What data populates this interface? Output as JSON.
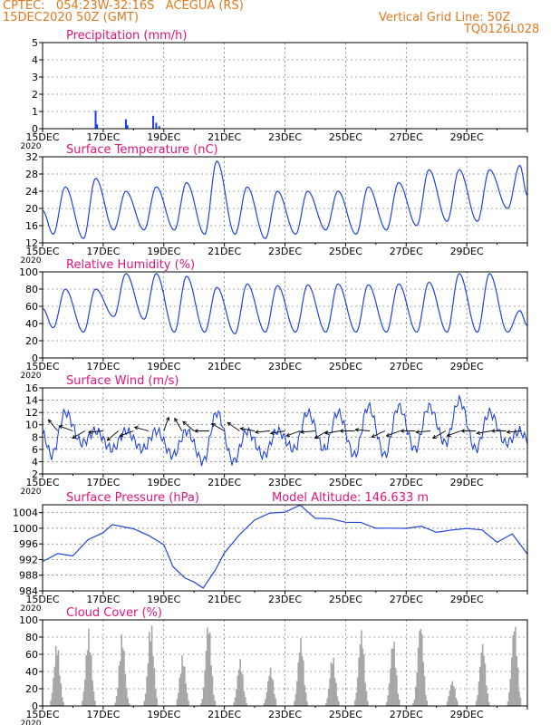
{
  "header": {
    "line1": "CPTEC:   054:23W-32:16S   ACEGUA (RS)",
    "line2": "15DEC2020 50Z (GMT)",
    "right1": "Vertical Grid Line: 50Z",
    "right2": "TQ0126L028",
    "color": "#e07a1f"
  },
  "chart_data": [
    {
      "id": "precip",
      "type": "bar",
      "title": "Precipitation (mm/h)",
      "ylim": [
        0,
        5
      ],
      "yticks": [
        0,
        1,
        2,
        3,
        4,
        5
      ],
      "color": "#1a3cff",
      "bars": [
        {
          "x": 1.75,
          "y": 1.05
        },
        {
          "x": 1.8,
          "y": 0.25
        },
        {
          "x": 2.75,
          "y": 0.55
        },
        {
          "x": 2.8,
          "y": 0.2
        },
        {
          "x": 3.65,
          "y": 0.75
        },
        {
          "x": 3.75,
          "y": 0.35
        },
        {
          "x": 3.85,
          "y": 0.15
        }
      ]
    },
    {
      "id": "temp",
      "type": "line",
      "title": "Surface Temperature (nC)",
      "ylim": [
        12,
        32
      ],
      "yticks": [
        12,
        16,
        20,
        24,
        28,
        32
      ],
      "color": "#2244dd",
      "daily_min": [
        14,
        13,
        15,
        15,
        15,
        14,
        14,
        13,
        14,
        15,
        14,
        15,
        16,
        17,
        17,
        20
      ],
      "daily_max": [
        25,
        27,
        24,
        25,
        26,
        31,
        25,
        24,
        24,
        24,
        25,
        26,
        29,
        29,
        29,
        30
      ]
    },
    {
      "id": "rh",
      "type": "line",
      "title": "Relative Humidity (%)",
      "ylim": [
        0,
        100
      ],
      "yticks": [
        0,
        20,
        40,
        60,
        80,
        100
      ],
      "color": "#2244dd",
      "daily_min": [
        35,
        30,
        48,
        45,
        30,
        30,
        28,
        30,
        30,
        30,
        30,
        30,
        30,
        30,
        30,
        30
      ],
      "daily_max": [
        80,
        80,
        98,
        98,
        95,
        82,
        86,
        84,
        85,
        86,
        85,
        86,
        88,
        98,
        98,
        55
      ]
    },
    {
      "id": "wind",
      "type": "line",
      "title": "Surface Wind (m/s)",
      "ylim": [
        2,
        16
      ],
      "yticks": [
        2,
        4,
        6,
        8,
        10,
        12,
        14,
        16
      ],
      "color": "#2244dd",
      "speed_min": [
        5,
        7,
        6,
        6,
        5,
        4,
        4,
        5,
        6,
        6,
        5,
        5,
        6,
        7,
        6,
        7
      ],
      "speed_max": [
        12,
        9,
        9,
        9,
        9,
        12,
        9,
        9,
        12,
        12,
        13,
        13,
        13,
        14,
        12,
        9
      ],
      "arrows": [
        {
          "x": 0.5,
          "dir": 320
        },
        {
          "x": 1.0,
          "dir": 290
        },
        {
          "x": 1.4,
          "dir": 240
        },
        {
          "x": 2.0,
          "dir": 265
        },
        {
          "x": 2.5,
          "dir": 230
        },
        {
          "x": 3.0,
          "dir": 250
        },
        {
          "x": 3.5,
          "dir": 285
        },
        {
          "x": 4.0,
          "dir": 20
        },
        {
          "x": 4.6,
          "dir": 330
        },
        {
          "x": 5.0,
          "dir": 310
        },
        {
          "x": 5.5,
          "dir": 270
        },
        {
          "x": 6.0,
          "dir": 300
        },
        {
          "x": 6.5,
          "dir": 305
        },
        {
          "x": 7.0,
          "dir": 280
        },
        {
          "x": 7.5,
          "dir": 265
        },
        {
          "x": 8.0,
          "dir": 260
        },
        {
          "x": 8.5,
          "dir": 250
        },
        {
          "x": 9.0,
          "dir": 265
        },
        {
          "x": 9.4,
          "dir": 240
        },
        {
          "x": 9.8,
          "dir": 260
        },
        {
          "x": 10.3,
          "dir": 270
        },
        {
          "x": 10.8,
          "dir": 275
        },
        {
          "x": 11.3,
          "dir": 245
        },
        {
          "x": 11.8,
          "dir": 250
        },
        {
          "x": 12.3,
          "dir": 270
        },
        {
          "x": 12.8,
          "dir": 265
        },
        {
          "x": 13.3,
          "dir": 240
        },
        {
          "x": 13.8,
          "dir": 250
        },
        {
          "x": 14.3,
          "dir": 270
        },
        {
          "x": 14.8,
          "dir": 260
        },
        {
          "x": 15.3,
          "dir": 270
        },
        {
          "x": 15.8,
          "dir": 265
        }
      ]
    },
    {
      "id": "pres",
      "type": "line",
      "title": "Surface Pressure (hPa)",
      "extra_label": "Model Altitude:  146.633 m",
      "ylim": [
        984,
        1006
      ],
      "yticks": [
        984,
        988,
        992,
        996,
        1000,
        1004
      ],
      "color": "#2244dd",
      "series": [
        {
          "x": 0.0,
          "y": 991.5
        },
        {
          "x": 0.5,
          "y": 993.5
        },
        {
          "x": 1.0,
          "y": 993.0
        },
        {
          "x": 1.5,
          "y": 997.0
        },
        {
          "x": 2.0,
          "y": 999.0
        },
        {
          "x": 2.3,
          "y": 1000.8
        },
        {
          "x": 3.0,
          "y": 1000.0
        },
        {
          "x": 3.5,
          "y": 998.0
        },
        {
          "x": 4.0,
          "y": 996.0
        },
        {
          "x": 4.3,
          "y": 990.0
        },
        {
          "x": 4.7,
          "y": 987.5
        },
        {
          "x": 5.0,
          "y": 986.0
        },
        {
          "x": 5.3,
          "y": 985.0
        },
        {
          "x": 5.7,
          "y": 989.0
        },
        {
          "x": 6.0,
          "y": 994.0
        },
        {
          "x": 6.5,
          "y": 998.0
        },
        {
          "x": 7.0,
          "y": 1002.5
        },
        {
          "x": 7.5,
          "y": 1003.5
        },
        {
          "x": 8.0,
          "y": 1004.5
        },
        {
          "x": 8.5,
          "y": 1005.5
        },
        {
          "x": 9.0,
          "y": 1003.0
        },
        {
          "x": 9.5,
          "y": 1002.0
        },
        {
          "x": 10.0,
          "y": 1002.0
        },
        {
          "x": 10.5,
          "y": 1001.0
        },
        {
          "x": 11.0,
          "y": 1000.5
        },
        {
          "x": 11.5,
          "y": 999.5
        },
        {
          "x": 12.0,
          "y": 1000.5
        },
        {
          "x": 12.5,
          "y": 1000.0
        },
        {
          "x": 13.0,
          "y": 999.5
        },
        {
          "x": 13.5,
          "y": 999.0
        },
        {
          "x": 14.0,
          "y": 1000.5
        },
        {
          "x": 14.5,
          "y": 999.0
        },
        {
          "x": 15.0,
          "y": 997.0
        },
        {
          "x": 15.5,
          "y": 998.0
        },
        {
          "x": 16.0,
          "y": 994.0
        }
      ]
    },
    {
      "id": "cloud",
      "type": "bar",
      "title": "Cloud Cover (%)",
      "ylim": [
        0,
        100
      ],
      "yticks": [
        0,
        20,
        40,
        60,
        80,
        100
      ],
      "color": "#a6a6a6",
      "daily_peak": [
        75,
        90,
        85,
        100,
        60,
        100,
        55,
        45,
        80,
        60,
        90,
        80,
        100,
        30,
        75,
        100
      ],
      "daily_phase": [
        0.45,
        0.5,
        0.6,
        0.55,
        0.6,
        0.45,
        0.5,
        0.5,
        0.5,
        0.55,
        0.5,
        0.55,
        0.45,
        0.5,
        0.5,
        0.55
      ]
    }
  ],
  "x_axis": {
    "tick_labels": [
      "15DEC",
      "17DEC",
      "19DEC",
      "21DEC",
      "23DEC",
      "25DEC",
      "27DEC",
      "29DEC"
    ],
    "year_label": "2020"
  },
  "colors": {
    "title_color": "#e0147d",
    "axis_color": "#000000",
    "grid_color": "#555555"
  }
}
